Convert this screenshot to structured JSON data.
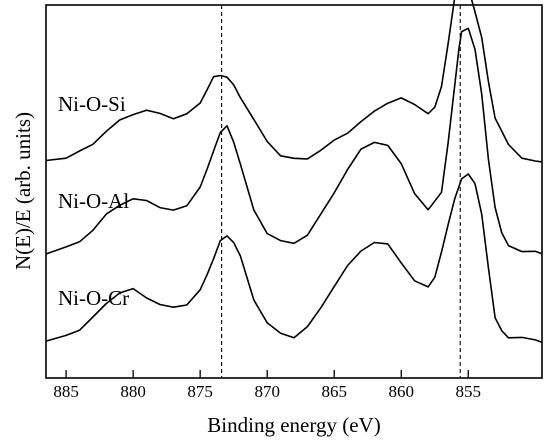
{
  "chart_data": {
    "type": "line",
    "xlabel": "Binding energy (eV)",
    "ylabel": "N(E)/E (arb. units)",
    "xlim": [
      886.5,
      849.5
    ],
    "x_reversed": true,
    "x_ticks": [
      885,
      880,
      875,
      870,
      865,
      860,
      855
    ],
    "y_ticks": [],
    "grid": false,
    "legend": "none",
    "reference_lines": [
      873.4,
      855.6
    ],
    "series": [
      {
        "name": "Ni-O-Si",
        "offset": 2.0,
        "x": [
          886.5,
          885,
          884,
          883,
          882,
          881,
          880,
          879,
          878,
          877,
          876,
          875,
          874.5,
          874,
          873.5,
          873,
          872.5,
          872,
          871,
          870,
          869,
          868,
          867,
          866,
          865,
          864,
          863,
          862,
          861,
          860,
          859,
          858,
          857.5,
          857,
          856.5,
          856,
          855.7,
          855.5,
          855,
          854.5,
          854,
          853.5,
          853,
          852,
          851,
          850,
          849.5
        ],
        "y": [
          0.1,
          0.12,
          0.18,
          0.28,
          0.4,
          0.52,
          0.6,
          0.62,
          0.6,
          0.55,
          0.58,
          0.72,
          0.85,
          0.98,
          1.02,
          0.98,
          0.9,
          0.78,
          0.52,
          0.3,
          0.15,
          0.1,
          0.12,
          0.2,
          0.3,
          0.4,
          0.5,
          0.62,
          0.72,
          0.75,
          0.7,
          0.6,
          0.65,
          0.9,
          1.35,
          1.85,
          2.08,
          2.1,
          1.95,
          1.7,
          1.4,
          0.95,
          0.55,
          0.25,
          0.13,
          0.08,
          0.07
        ]
      },
      {
        "name": "Ni-O-Al",
        "offset": 1.0,
        "x": [
          886.5,
          885,
          884,
          883,
          882,
          881,
          880,
          879,
          878,
          877,
          876,
          875,
          874.5,
          874,
          873.5,
          873,
          872.5,
          872,
          871,
          870,
          869,
          868,
          867,
          866,
          865,
          864,
          863,
          862,
          861,
          860,
          859,
          858,
          857,
          856.5,
          856,
          855.7,
          855.5,
          855,
          854.5,
          854,
          853.5,
          853,
          852.5,
          852,
          851,
          850,
          849.5
        ],
        "y": [
          0.1,
          0.15,
          0.22,
          0.35,
          0.5,
          0.62,
          0.68,
          0.65,
          0.6,
          0.55,
          0.6,
          0.82,
          0.98,
          1.2,
          1.4,
          1.45,
          1.3,
          1.05,
          0.55,
          0.32,
          0.22,
          0.2,
          0.3,
          0.5,
          0.75,
          1.0,
          1.2,
          1.3,
          1.25,
          1.05,
          0.75,
          0.55,
          0.75,
          1.3,
          1.9,
          2.3,
          2.48,
          2.5,
          2.3,
          1.8,
          1.1,
          0.6,
          0.3,
          0.18,
          0.12,
          0.1,
          0.1
        ]
      },
      {
        "name": "Ni-O-Cr",
        "offset": 0.0,
        "x": [
          886.5,
          885,
          884,
          883,
          882,
          881,
          880,
          879,
          878,
          877,
          876,
          875,
          874.5,
          874,
          873.5,
          873,
          872.5,
          872,
          871,
          870,
          869,
          868,
          867,
          866,
          865,
          864,
          863,
          862,
          861,
          860,
          859,
          858,
          857.5,
          857,
          856.5,
          856,
          855.5,
          855,
          854.5,
          854,
          853.5,
          853,
          852.5,
          852,
          851,
          850,
          849.5
        ],
        "y": [
          0.15,
          0.2,
          0.28,
          0.4,
          0.55,
          0.68,
          0.7,
          0.62,
          0.55,
          0.5,
          0.55,
          0.7,
          0.85,
          1.05,
          1.22,
          1.28,
          1.22,
          1.05,
          0.6,
          0.35,
          0.22,
          0.2,
          0.3,
          0.5,
          0.75,
          0.95,
          1.12,
          1.22,
          1.18,
          1.0,
          0.8,
          0.72,
          0.85,
          1.1,
          1.4,
          1.7,
          1.88,
          1.95,
          1.85,
          1.5,
          0.95,
          0.4,
          0.25,
          0.2,
          0.18,
          0.16,
          0.15
        ]
      }
    ]
  }
}
